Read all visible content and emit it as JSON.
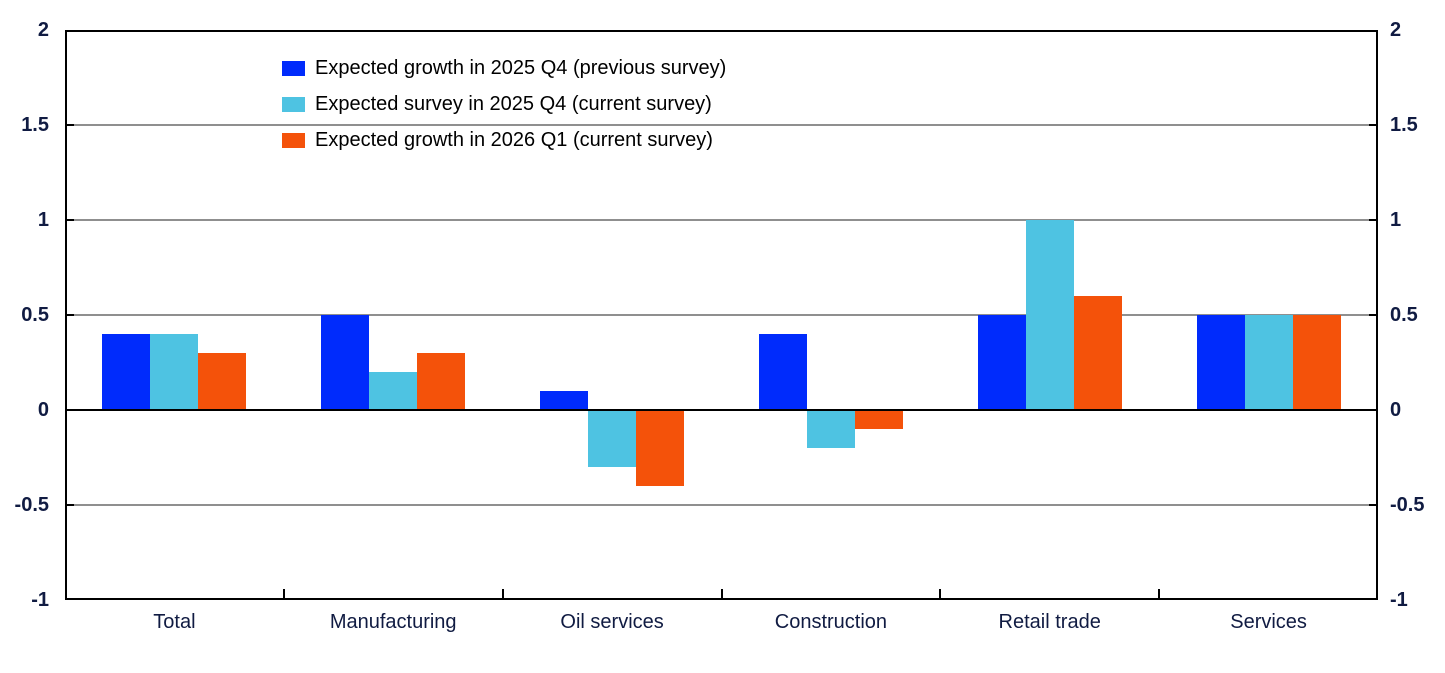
{
  "chart_data": {
    "type": "bar",
    "title": "",
    "categories": [
      "Total",
      "Manufacturing",
      "Oil services",
      "Construction",
      "Retail trade",
      "Services"
    ],
    "series": [
      {
        "name": "Expected growth in 2025 Q4 (previous survey)",
        "color": "#002BFC",
        "values": [
          0.4,
          0.5,
          0.1,
          0.4,
          0.5,
          0.5
        ]
      },
      {
        "name": "Expected survey in 2025 Q4 (current survey)",
        "color": "#4EC3E2",
        "values": [
          0.4,
          0.2,
          -0.3,
          -0.2,
          1.0,
          0.5
        ]
      },
      {
        "name": "Expected growth in 2026 Q1 (current survey)",
        "color": "#F4520A",
        "values": [
          0.3,
          0.3,
          -0.4,
          -0.1,
          0.6,
          0.5
        ]
      }
    ],
    "ylim": [
      -1,
      2
    ],
    "ytick_values": [
      2,
      1.5,
      1,
      0.5,
      0,
      -0.5,
      -1
    ],
    "ytick_labels": [
      "2",
      "1.5",
      "1",
      "0.5",
      "0",
      "-0.5",
      "-1"
    ],
    "grid": true,
    "legend_position": "top-left",
    "axes_mirrored": true
  },
  "styles": {
    "axis_text_color": "#101B42",
    "legend_text_color": "#000000",
    "grid_color": "#8F8F8F",
    "zero_line_color": "#000000",
    "axis_line_color": "#000000",
    "background": "#FFFFFF"
  }
}
